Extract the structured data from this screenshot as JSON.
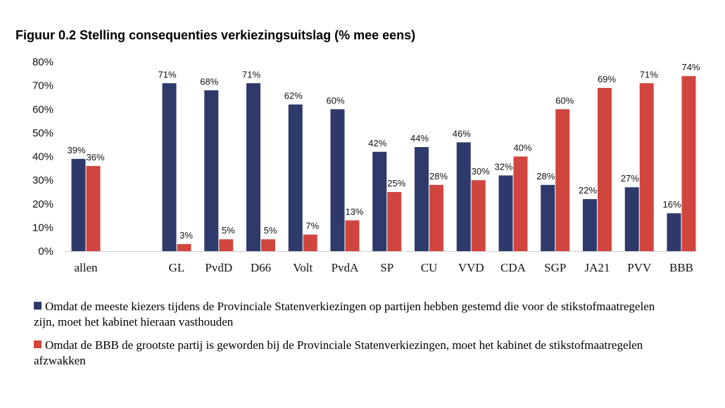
{
  "chart_data": {
    "type": "bar",
    "title": "Figuur 0.2 Stelling consequenties verkiezingsuitslag (% mee eens)",
    "categories": [
      "allen",
      "GL",
      "PvdD",
      "D66",
      "Volt",
      "PvdA",
      "SP",
      "CU",
      "VVD",
      "CDA",
      "SGP",
      "JA21",
      "PVV",
      "BBB"
    ],
    "series": [
      {
        "name": "Omdat de meeste kiezers tijdens de Provinciale Statenverkiezingen op partijen hebben gestemd die voor de stikstofmaatregelen zijn, moet het kabinet hieraan vasthouden",
        "color": "#2e3a6b",
        "values": [
          39,
          71,
          68,
          71,
          62,
          60,
          42,
          44,
          46,
          32,
          28,
          22,
          27,
          16
        ],
        "labels": [
          "39%",
          "71%",
          "68%",
          "71%",
          "62%",
          "60%",
          "42%",
          "44%",
          "46%",
          "32%",
          "28%",
          "22%",
          "27%",
          "16%"
        ]
      },
      {
        "name": "Omdat de BBB de grootste partij is geworden bij de Provinciale Statenverkiezingen, moet het kabinet de stikstofmaatregelen afzwakken",
        "color": "#d0463e",
        "values": [
          36,
          3,
          5,
          5,
          7,
          13,
          25,
          28,
          30,
          40,
          60,
          69,
          71,
          74
        ],
        "labels": [
          "36%",
          "3%",
          "5%",
          "5%",
          "7%",
          "13%",
          "25%",
          "28%",
          "30%",
          "40%",
          "60%",
          "69%",
          "71%",
          "74%"
        ]
      }
    ],
    "ylim": [
      0,
      80
    ],
    "yticks": [
      "0%",
      "10%",
      "20%",
      "30%",
      "40%",
      "50%",
      "60%",
      "70%",
      "80%"
    ],
    "xlabel": "",
    "ylabel": "",
    "legend_position": "bottom",
    "grid": false
  }
}
